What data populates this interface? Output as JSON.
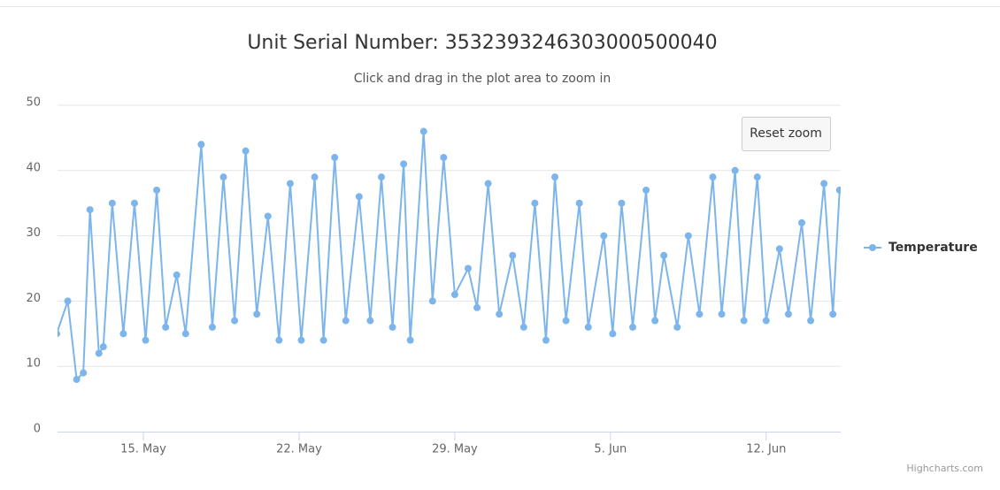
{
  "chart_data": {
    "type": "line",
    "title": "Unit Serial Number: 353239324630300050004​0",
    "subtitle": "Click and drag in the plot area to zoom in",
    "reset_button": "Reset zoom",
    "credits": "Highcharts.com",
    "x": [
      11.1,
      11.6,
      12.0,
      12.3,
      12.6,
      13.0,
      13.2,
      13.6,
      14.1,
      14.6,
      15.1,
      15.6,
      16.0,
      16.5,
      16.9,
      17.6,
      18.1,
      18.6,
      19.1,
      19.6,
      20.1,
      20.6,
      21.1,
      21.6,
      22.1,
      22.7,
      23.1,
      23.6,
      24.1,
      24.7,
      25.2,
      25.7,
      26.2,
      26.7,
      27.0,
      27.6,
      28.0,
      28.5,
      29.0,
      29.6,
      30.0,
      30.5,
      31.0,
      31.6,
      32.1,
      32.6,
      33.1,
      33.5,
      34.0,
      34.6,
      35.0,
      35.7,
      36.1,
      36.5,
      37.0,
      37.6,
      38.0,
      38.4,
      39.0,
      39.5,
      40.0,
      40.6,
      41.0,
      41.6,
      42.0,
      42.6,
      43.0,
      43.6,
      44.0,
      44.6,
      45.0,
      45.6,
      46.0,
      46.3
    ],
    "series": [
      {
        "name": "Temperature",
        "color": "#7cb5ec",
        "values": [
          15,
          20,
          8,
          9,
          34,
          12,
          13,
          35,
          15,
          35,
          14,
          37,
          16,
          24,
          15,
          44,
          16,
          39,
          17,
          43,
          18,
          33,
          14,
          38,
          14,
          39,
          14,
          42,
          17,
          36,
          17,
          39,
          16,
          41,
          14,
          46,
          20,
          42,
          21,
          25,
          19,
          38,
          18,
          27,
          16,
          35,
          14,
          39,
          17,
          35,
          16,
          30,
          15,
          35,
          16,
          37,
          17,
          27,
          16,
          30,
          18,
          39,
          18,
          40,
          17,
          39,
          17,
          28,
          18,
          32,
          17,
          38,
          18,
          37
        ]
      }
    ],
    "xlim": [
      11.14,
      46.35
    ],
    "xticks": [
      {
        "value": 15,
        "label": "15. May"
      },
      {
        "value": 22,
        "label": "22. May"
      },
      {
        "value": 29,
        "label": "29. May"
      },
      {
        "value": 36,
        "label": "5. Jun"
      },
      {
        "value": 43,
        "label": "12. Jun"
      }
    ],
    "ylim": [
      0,
      50
    ],
    "yticks": [
      0,
      10,
      20,
      30,
      40,
      50
    ],
    "grid": true,
    "legend": "right"
  }
}
